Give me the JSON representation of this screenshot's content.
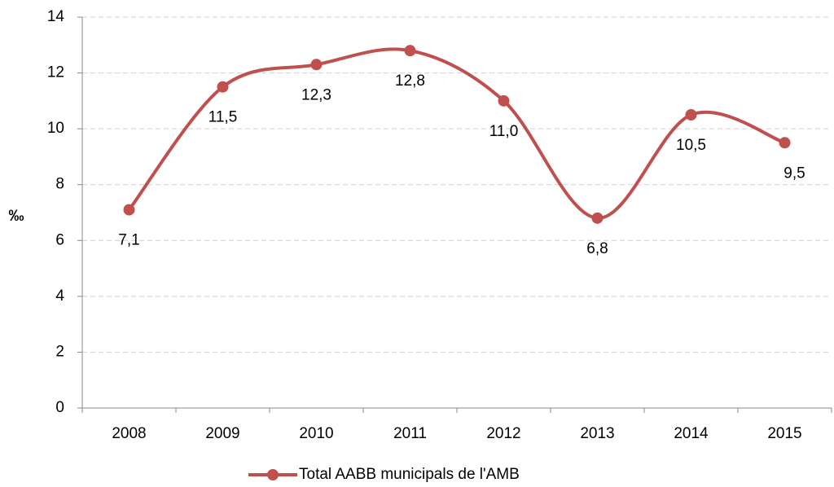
{
  "chart_data": {
    "type": "line",
    "y_label": "‰",
    "categories": [
      "2008",
      "2009",
      "2010",
      "2011",
      "2012",
      "2013",
      "2014",
      "2015"
    ],
    "series": [
      {
        "name": "Total AABB municipals de l'AMB",
        "color": "#c0504d",
        "values": [
          7.1,
          11.5,
          12.3,
          12.8,
          11.0,
          6.8,
          10.5,
          9.5
        ],
        "value_labels": [
          "7,1",
          "11,5",
          "12,3",
          "12,8",
          "11,0",
          "6,8",
          "10,5",
          "9,5"
        ]
      }
    ],
    "ylim": [
      0,
      14
    ],
    "yticks": [
      0,
      2,
      4,
      6,
      8,
      10,
      12,
      14
    ],
    "grid": true,
    "legend": "bottom"
  }
}
